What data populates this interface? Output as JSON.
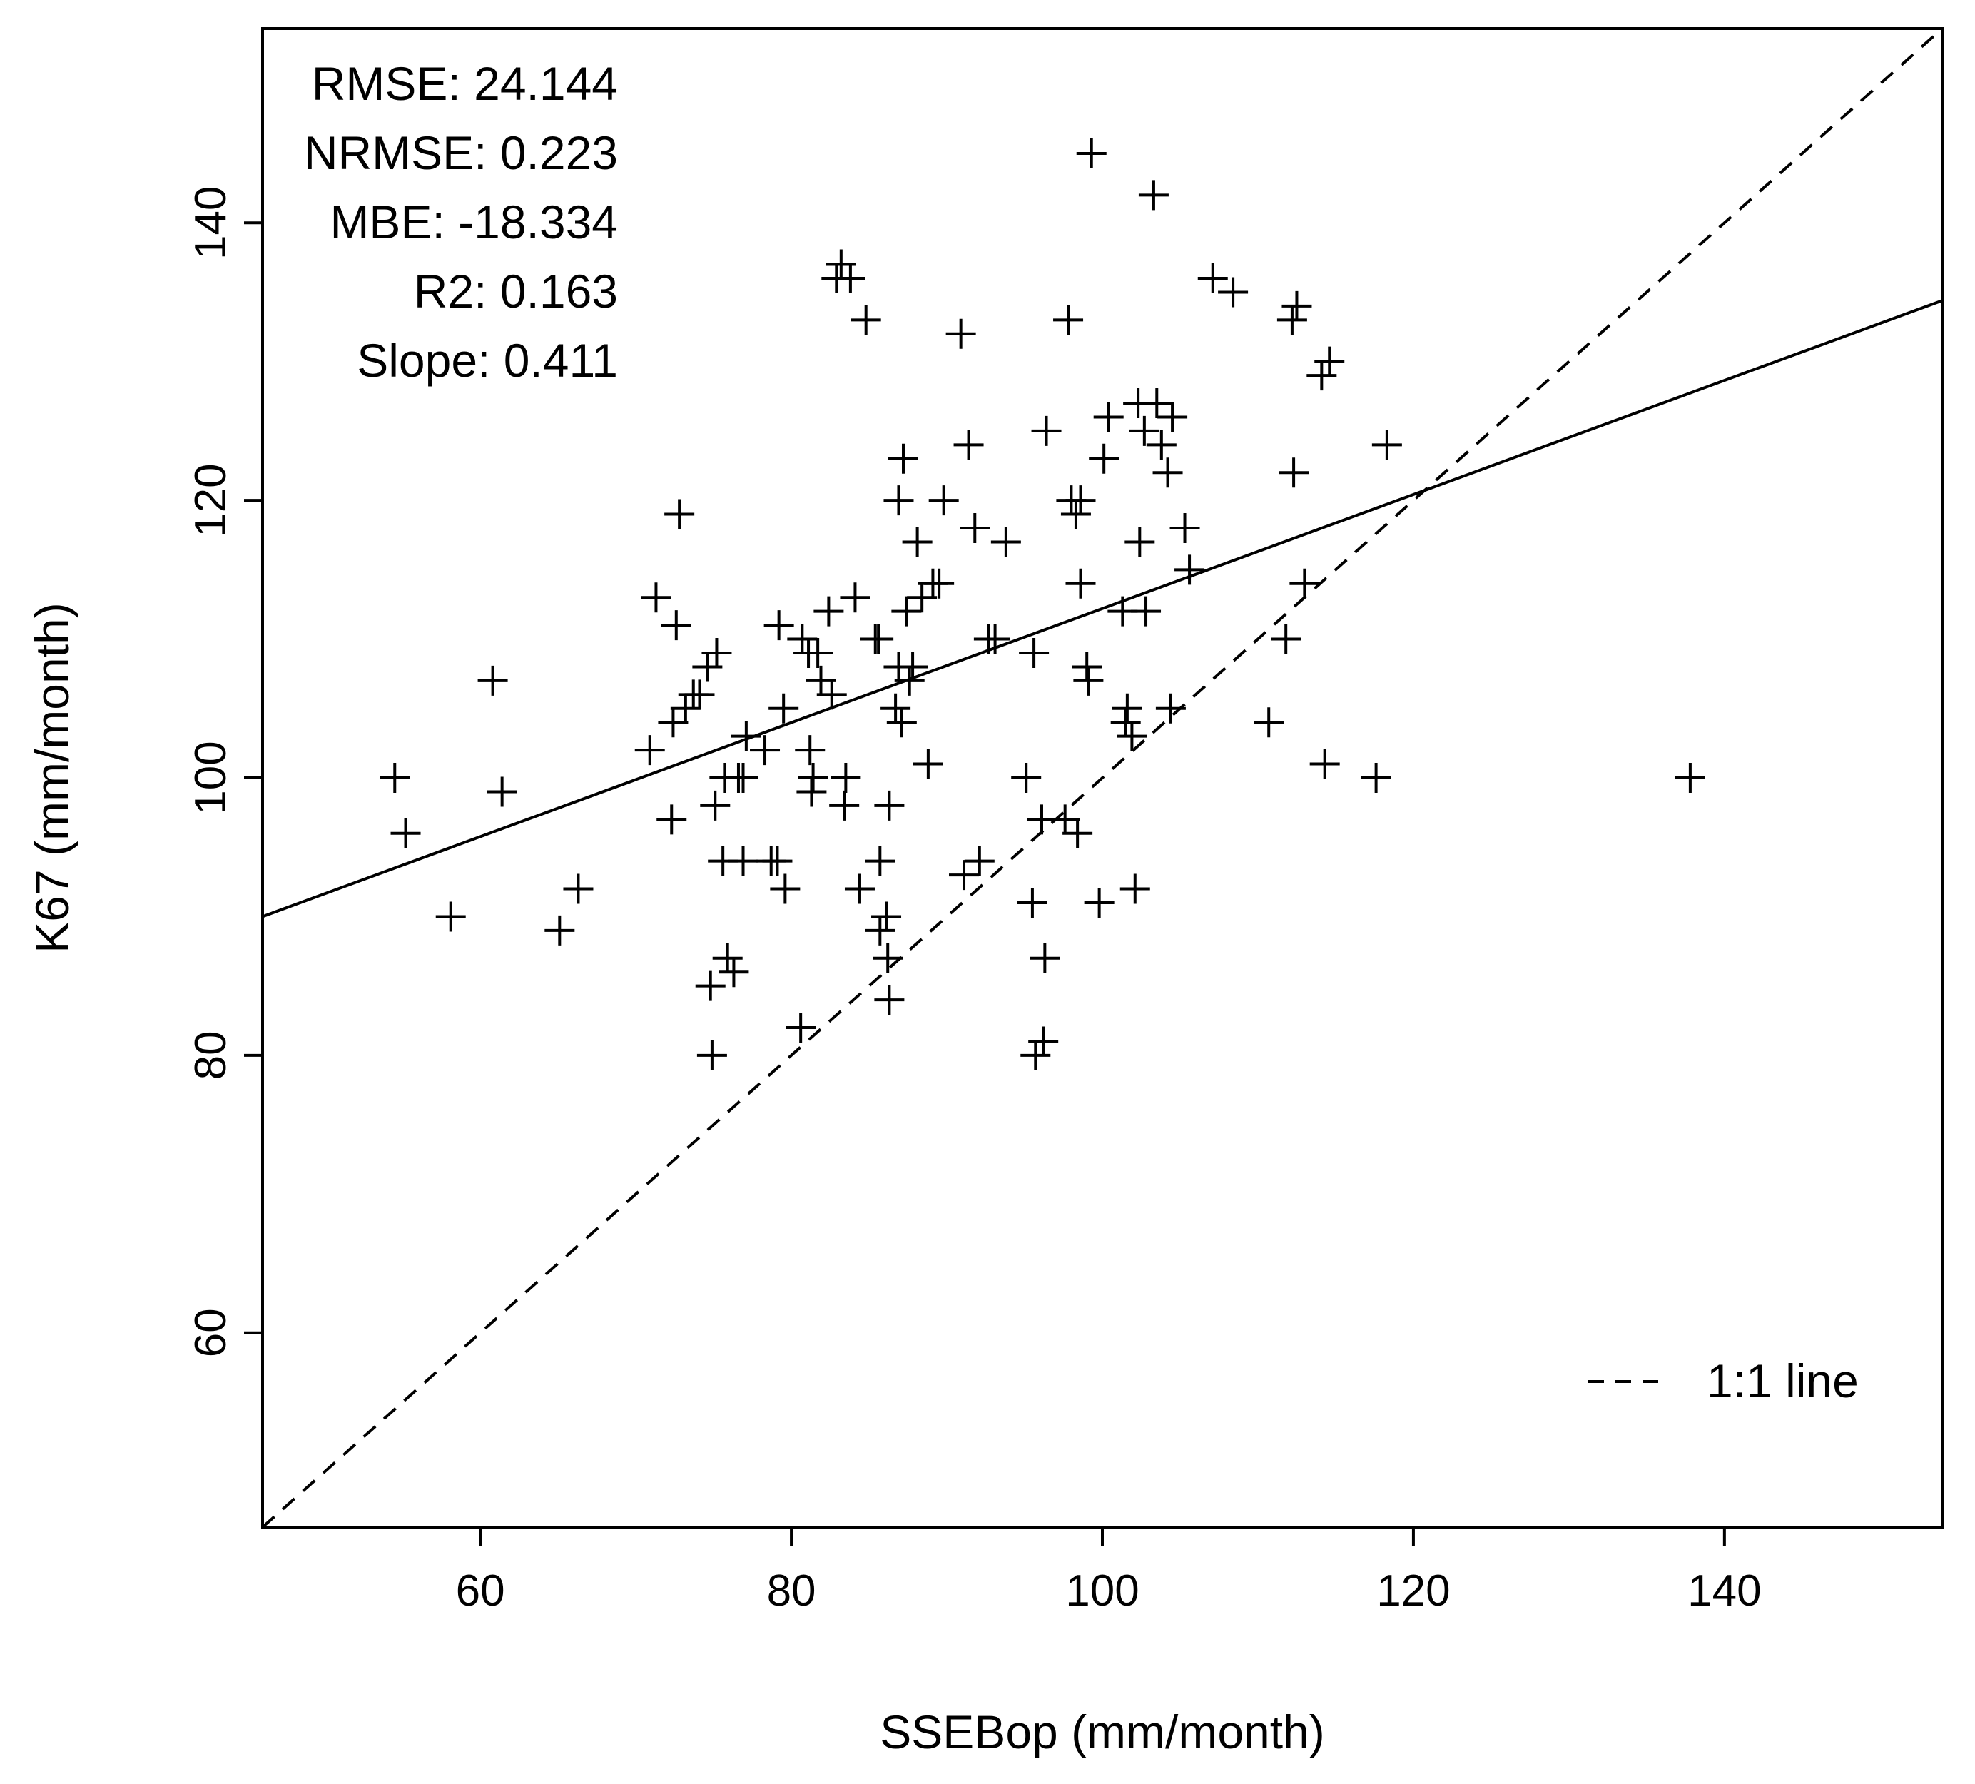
{
  "chart_data": {
    "type": "scatter",
    "title": "",
    "xlabel": "SSEBop (mm/month)",
    "ylabel": "K67 (mm/month)",
    "xlim": [
      46,
      154
    ],
    "ylim": [
      46,
      154
    ],
    "x_ticks": [
      60,
      80,
      100,
      120,
      140
    ],
    "y_ticks": [
      60,
      80,
      100,
      120,
      140
    ],
    "x_tick_labels": [
      "60",
      "80",
      "100",
      "120",
      "140"
    ],
    "y_tick_labels": [
      "60",
      "80",
      "100",
      "120",
      "140"
    ],
    "grid": false,
    "marker": "+",
    "stats": [
      "RMSE: 24.144",
      "NRMSE: 0.223",
      "MBE: -18.334",
      "R2: 0.163",
      "Slope: 0.411"
    ],
    "regression_line": {
      "slope": 0.411,
      "intercept": 71.1,
      "style": "solid"
    },
    "one_to_one_line": {
      "slope": 1,
      "intercept": 0,
      "style": "dashed"
    },
    "legend": {
      "position": "bottom-right",
      "entries": [
        {
          "label": "1:1 line",
          "style": "dashed"
        }
      ]
    },
    "points": [
      [
        54.5,
        100
      ],
      [
        55.2,
        96
      ],
      [
        58.1,
        90
      ],
      [
        60.8,
        107
      ],
      [
        61.4,
        99
      ],
      [
        65.1,
        89
      ],
      [
        66.3,
        92
      ],
      [
        70.9,
        102
      ],
      [
        71.3,
        113
      ],
      [
        72.3,
        97
      ],
      [
        72.6,
        111
      ],
      [
        72.4,
        104
      ],
      [
        72.8,
        119
      ],
      [
        73.2,
        105
      ],
      [
        73.7,
        106
      ],
      [
        74.1,
        106
      ],
      [
        74.6,
        108
      ],
      [
        74.8,
        85
      ],
      [
        75.2,
        109
      ],
      [
        74.9,
        80
      ],
      [
        75.1,
        98
      ],
      [
        75.6,
        94
      ],
      [
        75.7,
        100
      ],
      [
        75.9,
        87
      ],
      [
        76.3,
        86
      ],
      [
        76.6,
        100
      ],
      [
        76.9,
        100
      ],
      [
        77.1,
        103
      ],
      [
        76.9,
        94
      ],
      [
        78.3,
        102
      ],
      [
        78.7,
        94
      ],
      [
        79.1,
        94
      ],
      [
        79.2,
        111
      ],
      [
        79.5,
        105
      ],
      [
        79.6,
        92
      ],
      [
        80.6,
        82
      ],
      [
        80.7,
        110
      ],
      [
        81.1,
        109
      ],
      [
        81.2,
        102
      ],
      [
        81.3,
        99
      ],
      [
        81.4,
        100
      ],
      [
        81.7,
        109
      ],
      [
        81.9,
        107
      ],
      [
        82.4,
        112
      ],
      [
        82.6,
        106
      ],
      [
        82.9,
        136
      ],
      [
        83.2,
        137
      ],
      [
        83.8,
        136
      ],
      [
        83.5,
        100
      ],
      [
        83.4,
        98
      ],
      [
        84.1,
        113
      ],
      [
        84.4,
        92
      ],
      [
        84.8,
        133
      ],
      [
        85.4,
        110
      ],
      [
        85.7,
        94
      ],
      [
        85.6,
        110
      ],
      [
        85.7,
        89
      ],
      [
        86.1,
        90
      ],
      [
        86.3,
        98
      ],
      [
        86.2,
        87
      ],
      [
        86.3,
        84
      ],
      [
        86.9,
        108
      ],
      [
        86.7,
        105
      ],
      [
        87.1,
        104
      ],
      [
        86.9,
        120
      ],
      [
        87.2,
        123
      ],
      [
        87.4,
        112
      ],
      [
        87.6,
        107
      ],
      [
        87.8,
        108
      ],
      [
        88.1,
        117
      ],
      [
        88.4,
        113
      ],
      [
        88.8,
        101
      ],
      [
        89.1,
        114
      ],
      [
        89.5,
        114
      ],
      [
        89.8,
        120
      ],
      [
        90.9,
        132
      ],
      [
        91.1,
        93
      ],
      [
        91.4,
        124
      ],
      [
        91.8,
        118
      ],
      [
        92.1,
        94
      ],
      [
        92.7,
        110
      ],
      [
        93.1,
        110
      ],
      [
        93.8,
        117
      ],
      [
        95.1,
        100
      ],
      [
        95.5,
        91
      ],
      [
        95.6,
        109
      ],
      [
        95.7,
        80
      ],
      [
        96.2,
        81
      ],
      [
        96.1,
        97
      ],
      [
        96.4,
        125
      ],
      [
        96.3,
        87
      ],
      [
        97.6,
        97
      ],
      [
        97.8,
        133
      ],
      [
        98.0,
        120
      ],
      [
        98.3,
        119
      ],
      [
        98.4,
        96
      ],
      [
        98.6,
        120
      ],
      [
        98.6,
        114
      ],
      [
        99.0,
        108
      ],
      [
        99.1,
        107
      ],
      [
        99.3,
        145
      ],
      [
        99.8,
        91
      ],
      [
        100.1,
        123
      ],
      [
        100.4,
        126
      ],
      [
        101.3,
        112
      ],
      [
        101.5,
        104
      ],
      [
        101.6,
        105
      ],
      [
        101.9,
        103
      ],
      [
        102.1,
        92
      ],
      [
        102.3,
        127
      ],
      [
        102.4,
        117
      ],
      [
        102.7,
        125
      ],
      [
        102.8,
        112
      ],
      [
        103.3,
        142
      ],
      [
        103.5,
        127
      ],
      [
        103.8,
        124
      ],
      [
        104.2,
        122
      ],
      [
        104.4,
        105
      ],
      [
        104.5,
        126
      ],
      [
        105.3,
        118
      ],
      [
        105.6,
        115
      ],
      [
        107.1,
        136
      ],
      [
        108.4,
        135
      ],
      [
        110.7,
        104
      ],
      [
        111.8,
        110
      ],
      [
        112.2,
        133
      ],
      [
        112.5,
        134
      ],
      [
        112.3,
        122
      ],
      [
        113.0,
        114
      ],
      [
        114.1,
        129
      ],
      [
        114.3,
        101
      ],
      [
        114.6,
        130
      ],
      [
        117.6,
        100
      ],
      [
        118.3,
        124
      ],
      [
        137.8,
        100
      ]
    ]
  }
}
